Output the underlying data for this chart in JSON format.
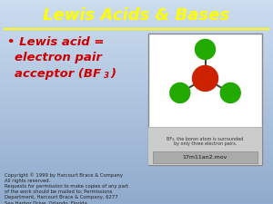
{
  "title": "Lewis Acids & Bases",
  "title_color": "#FFFF00",
  "title_fontsize": 13,
  "bg_color_top": "#8faacc",
  "bg_color_bottom": "#ccddf0",
  "text_color": "#CC0000",
  "text_fontsize": 9.5,
  "separator_color": "#FFFF00",
  "copyright_text": "Copyright © 1999 by Harcourt Brace & Company\nAll rights reserved.\nRequests for permission to make copies of any part\nof the work should be mailed to: Permissions\nDepartment, Harcourt Brace & Company, 6277\nSea Harbor Drive, Orlando, Florida",
  "copyright_fontsize": 3.8,
  "copyright_color": "#222222",
  "molecule_caption": "BF₃, the boron atom is surrounded\nby only three electron pairs.",
  "molecule_filename": "17m11an2.mov",
  "boron_color": "#CC2200",
  "fluorine_color": "#22AA00",
  "box_bg": "#e0e0e0",
  "box_border": "#888888"
}
